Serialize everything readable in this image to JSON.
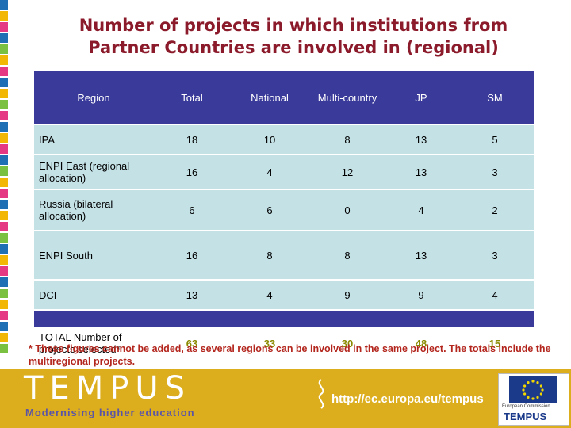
{
  "title_line1": "Number of projects in which institutions from",
  "title_line2": "Partner Countries are involved in (regional)",
  "table": {
    "headers": [
      "Region",
      "Total",
      "National",
      "Multi-country",
      "JP",
      "SM"
    ],
    "rows": [
      {
        "region": "IPA",
        "total": "18",
        "national": "10",
        "multi": "8",
        "jp": "13",
        "sm": "5"
      },
      {
        "region": "ENPI East (regional allocation)",
        "total": "16",
        "national": "4",
        "multi": "12",
        "jp": "13",
        "sm": "3"
      },
      {
        "region": "Russia (bilateral allocation)",
        "total": "6",
        "national": "6",
        "multi": "0",
        "jp": "4",
        "sm": "2"
      },
      {
        "region": "ENPI South",
        "total": "16",
        "national": "8",
        "multi": "8",
        "jp": "13",
        "sm": "3"
      },
      {
        "region": "DCI",
        "total": "13",
        "national": "4",
        "multi": "9",
        "jp": "9",
        "sm": "4"
      }
    ],
    "total_row": {
      "region": "TOTAL Number of projects selected*",
      "total": "63",
      "national": "33",
      "multi": "30",
      "jp": "48",
      "sm": "15"
    }
  },
  "footnote": "* These figures cannot be added, as several regions can be involved in the same project. The totals include the multiregional projects.",
  "footer": {
    "brand": "TEMPUS",
    "tagline": "Modernising higher education",
    "url": "http://ec.europa.eu/tempus",
    "eu_name": "European Commission",
    "eu_tempus": "TEMPUS"
  },
  "colors": {
    "title": "#8b1a2b",
    "header_bg": "#3a3a9a",
    "row_bg": "#c4e1e6",
    "total_value": "#8a8a00",
    "footnote": "#b3261e",
    "footer_bg": "#dcae1d"
  }
}
